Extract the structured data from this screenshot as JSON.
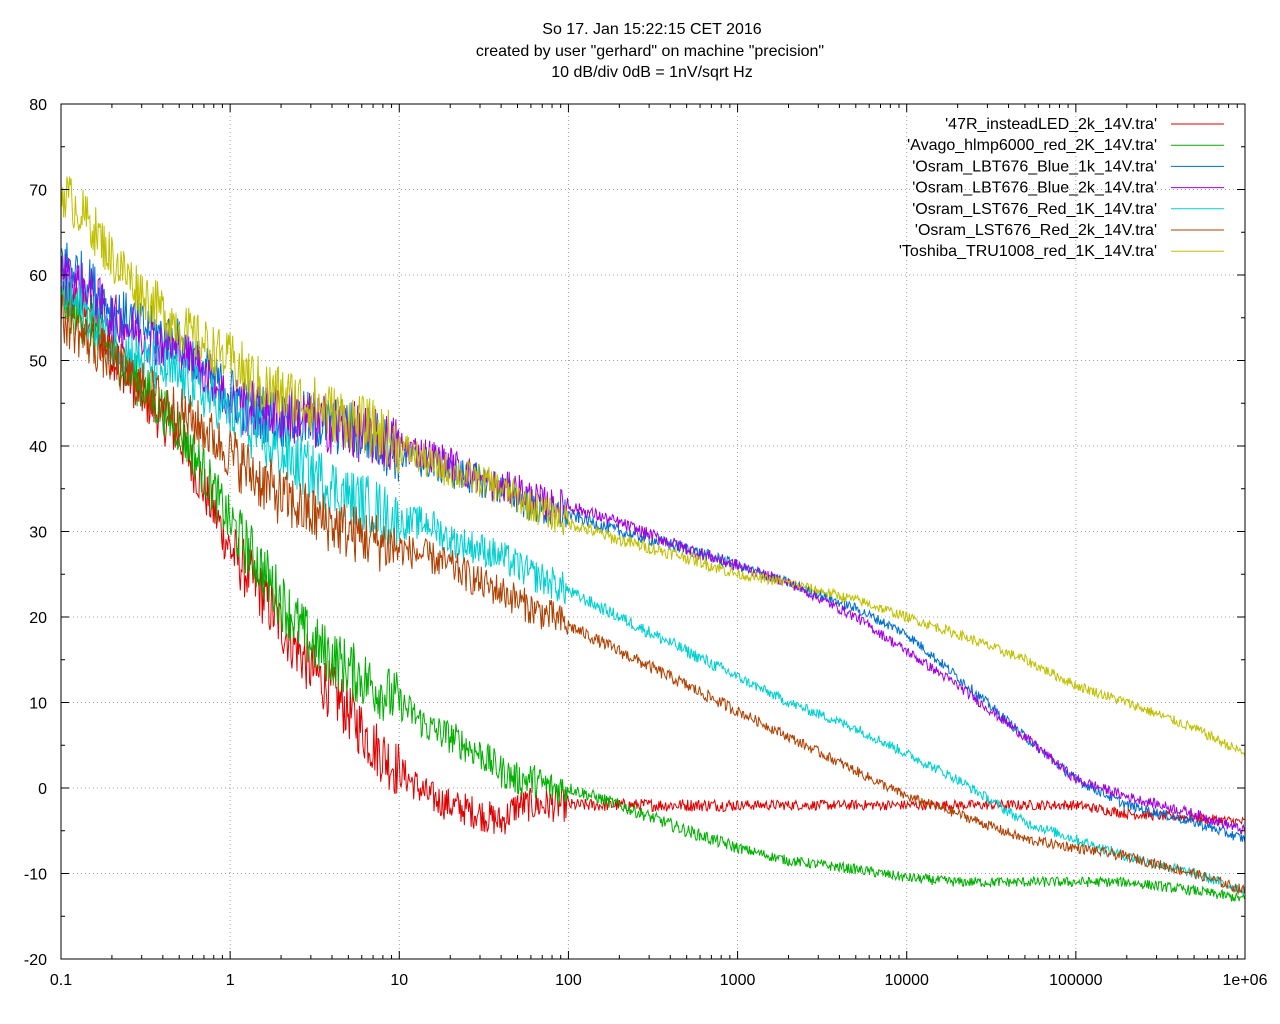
{
  "chart_data": {
    "type": "line",
    "title_lines": [
      "So 17. Jan 15:22:15 CET 2016",
      "created by user \"gerhard\" on machine \"precision\"",
      "10 dB/div   0dB = 1nV/sqrt Hz"
    ],
    "xlabel": "",
    "ylabel": "",
    "x_scale": "log",
    "xlim": [
      0.1,
      1000000
    ],
    "ylim": [
      -20,
      80
    ],
    "x_ticks": [
      {
        "value": 0.1,
        "label": "0.1"
      },
      {
        "value": 1,
        "label": "1"
      },
      {
        "value": 10,
        "label": "10"
      },
      {
        "value": 100,
        "label": "100"
      },
      {
        "value": 1000,
        "label": "1000"
      },
      {
        "value": 10000,
        "label": "10000"
      },
      {
        "value": 100000,
        "label": "100000"
      },
      {
        "value": 1000000,
        "label": "1e+06"
      }
    ],
    "y_ticks": [
      {
        "value": 80,
        "label": "80"
      },
      {
        "value": 70,
        "label": "70"
      },
      {
        "value": 60,
        "label": "60"
      },
      {
        "value": 50,
        "label": "50"
      },
      {
        "value": 40,
        "label": "40"
      },
      {
        "value": 30,
        "label": "30"
      },
      {
        "value": 20,
        "label": "20"
      },
      {
        "value": 10,
        "label": "10"
      },
      {
        "value": 0,
        "label": "0"
      },
      {
        "value": -10,
        "label": "-10"
      },
      {
        "value": -20,
        "label": "-20"
      }
    ],
    "grid": true,
    "legend_position": "top-right",
    "series": [
      {
        "name": "'47R_insteadLED_2k_14V.tra'",
        "color": "#e00000",
        "x": [
          0.1,
          0.15,
          0.2,
          0.3,
          0.5,
          0.7,
          1,
          1.5,
          2,
          3,
          5,
          7,
          10,
          15,
          20,
          30,
          40,
          50,
          60,
          80,
          100,
          200,
          500,
          1000,
          2000,
          5000,
          10000,
          20000,
          50000,
          100000,
          200000,
          500000,
          1000000
        ],
        "y": [
          58,
          55,
          51,
          46,
          41,
          35,
          28,
          23,
          19,
          14,
          9,
          5,
          2,
          -1,
          -2,
          -3,
          -4,
          -2,
          -2,
          -2,
          -2,
          -2,
          -2,
          -2,
          -2,
          -2,
          -2,
          -2,
          -2,
          -2,
          -3,
          -3.5,
          -4
        ]
      },
      {
        "name": "'Avago_hlmp6000_red_2K_14V.tra'",
        "color": "#00b000",
        "x": [
          0.1,
          0.15,
          0.2,
          0.3,
          0.5,
          0.7,
          1,
          1.5,
          2,
          3,
          5,
          7,
          10,
          15,
          20,
          30,
          40,
          50,
          60,
          80,
          100,
          200,
          500,
          1000,
          2000,
          5000,
          10000,
          20000,
          50000,
          100000,
          200000,
          500000,
          1000000
        ],
        "y": [
          57,
          54,
          51,
          47,
          42,
          37,
          31,
          26,
          22,
          17,
          14,
          12,
          10,
          7,
          6,
          4,
          2,
          1,
          1,
          0,
          0,
          -2,
          -5,
          -7,
          -8.5,
          -9.5,
          -10.5,
          -11,
          -11,
          -11,
          -11,
          -12,
          -13
        ]
      },
      {
        "name": "'Osram_LBT676_Blue_1k_14V.tra'",
        "color": "#0070d0",
        "x": [
          0.1,
          0.15,
          0.2,
          0.3,
          0.5,
          0.7,
          1,
          1.5,
          2,
          3,
          5,
          7,
          10,
          15,
          20,
          30,
          40,
          50,
          60,
          80,
          100,
          200,
          500,
          1000,
          2000,
          5000,
          10000,
          20000,
          50000,
          100000,
          200000,
          500000,
          1000000
        ],
        "y": [
          62,
          59,
          56,
          54,
          52,
          49,
          46,
          44,
          43,
          43,
          42,
          41,
          39,
          38,
          37,
          36,
          35,
          34,
          33,
          32,
          32,
          30,
          28,
          26,
          24,
          21,
          18,
          13,
          6,
          1,
          -2,
          -4,
          -6
        ]
      },
      {
        "name": "'Osram_LBT676_Blue_2k_14V.tra'",
        "color": "#a000e0",
        "x": [
          0.1,
          0.15,
          0.2,
          0.3,
          0.5,
          0.7,
          1,
          1.5,
          2,
          3,
          5,
          7,
          10,
          15,
          20,
          30,
          40,
          50,
          60,
          80,
          100,
          200,
          500,
          1000,
          2000,
          5000,
          10000,
          20000,
          50000,
          100000,
          200000,
          500000,
          1000000
        ],
        "y": [
          60,
          58,
          55,
          53,
          51,
          49,
          45,
          44,
          44,
          43,
          42,
          41,
          40,
          39,
          38,
          36,
          35,
          35,
          34,
          33,
          33,
          31,
          28,
          26,
          24,
          20,
          16,
          12,
          6,
          1,
          -1,
          -3,
          -5
        ]
      },
      {
        "name": "'Osram_LST676_Red_1K_14V.tra'",
        "color": "#00d0d0",
        "x": [
          0.1,
          0.15,
          0.2,
          0.3,
          0.5,
          0.7,
          1,
          1.5,
          2,
          3,
          5,
          7,
          10,
          15,
          20,
          30,
          40,
          50,
          60,
          80,
          100,
          200,
          500,
          1000,
          2000,
          5000,
          10000,
          20000,
          50000,
          100000,
          200000,
          500000,
          1000000
        ],
        "y": [
          58,
          55,
          52,
          50,
          48,
          46,
          44,
          41,
          39,
          37,
          34,
          33,
          31,
          31,
          29,
          28,
          27,
          26,
          25,
          24,
          23,
          20,
          16,
          13,
          10,
          7,
          4,
          1,
          -4,
          -6,
          -8,
          -10,
          -12
        ]
      },
      {
        "name": "'Osram_LST676_Red_2k_14V.tra'",
        "color": "#b04000",
        "x": [
          0.1,
          0.15,
          0.2,
          0.3,
          0.5,
          0.7,
          1,
          1.5,
          2,
          3,
          5,
          7,
          10,
          15,
          20,
          30,
          40,
          50,
          60,
          80,
          100,
          200,
          500,
          1000,
          2000,
          5000,
          10000,
          20000,
          50000,
          100000,
          200000,
          500000,
          1000000
        ],
        "y": [
          55,
          52,
          50,
          47,
          44,
          42,
          39,
          36,
          34,
          32,
          30,
          29,
          28,
          27,
          26,
          24,
          23,
          22,
          21,
          20,
          19,
          16,
          12,
          9,
          6,
          2,
          -1,
          -3,
          -6,
          -7,
          -8,
          -10,
          -12
        ]
      },
      {
        "name": "'Toshiba_TRU1008_red_1K_14V.tra'",
        "color": "#c0c000",
        "x": [
          0.1,
          0.15,
          0.2,
          0.3,
          0.5,
          0.7,
          1,
          1.5,
          2,
          3,
          5,
          7,
          10,
          15,
          20,
          30,
          40,
          50,
          60,
          80,
          100,
          200,
          500,
          1000,
          2000,
          5000,
          10000,
          20000,
          50000,
          100000,
          200000,
          500000,
          1000000
        ],
        "y": [
          70,
          66,
          62,
          58,
          54,
          52,
          50,
          47,
          46,
          45,
          43,
          42,
          40,
          38,
          37,
          36,
          35,
          34,
          33,
          32,
          31,
          29,
          27,
          25,
          24,
          22,
          20,
          18,
          15,
          12,
          10,
          7,
          4
        ]
      }
    ]
  }
}
